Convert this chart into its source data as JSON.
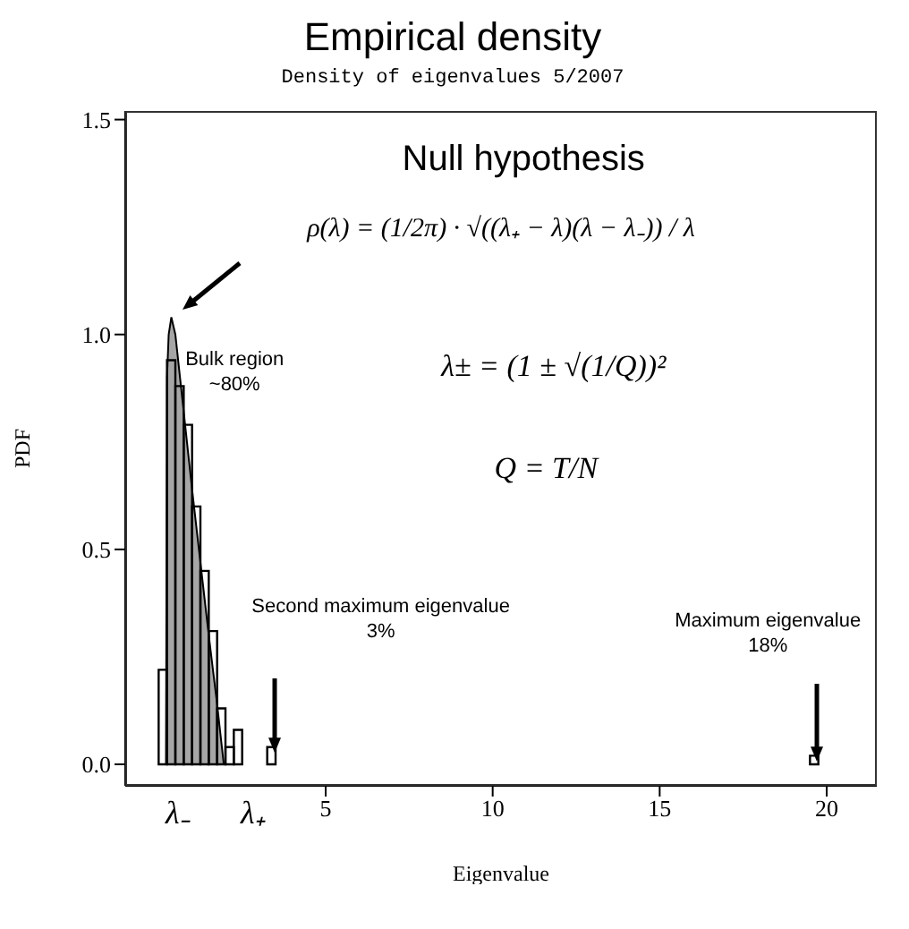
{
  "chart_data": {
    "type": "histogram",
    "title": "Empirical density",
    "subtitle": "Density of eigenvalues 5/2007",
    "xlabel": "Eigenvalue",
    "ylabel": "PDF",
    "bins": [
      0,
      0.25,
      0.5,
      0.75,
      1.0,
      1.25,
      1.5,
      1.75,
      2.0,
      2.25,
      2.5,
      3.25,
      3.5,
      19.5,
      19.75
    ],
    "values": [
      0.22,
      0.94,
      0.88,
      0.79,
      0.6,
      0.45,
      0.31,
      0.13,
      0.04,
      0.08,
      0,
      0.04,
      0,
      0.02
    ],
    "color": "#000000",
    "series": [
      {
        "type": "area",
        "color": "#a6a6a6",
        "x": [
          0.22,
          0.25,
          0.3,
          0.38,
          0.5,
          0.75,
          1.0,
          1.25,
          1.5,
          1.75,
          1.95
        ],
        "values": [
          0,
          0.9,
          1.0,
          1.04,
          1.0,
          0.82,
          0.64,
          0.47,
          0.3,
          0.14,
          0
        ]
      }
    ],
    "xlim": [
      -1,
      21.5
    ],
    "xticks": [
      5,
      10,
      15,
      20
    ],
    "ylim": [
      -0.05,
      1.52
    ],
    "yticks": [
      {
        "value": 0,
        "label": "0.0"
      },
      0.5,
      {
        "value": 1,
        "label": "1.0"
      },
      1.5
    ],
    "grid": false,
    "annotations": [
      "Null hypothesis",
      "ρ(λ) = (1/2π) · √((λ₊ − λ)(λ − λ₋)) / λ",
      "λ± = (1 ± √(1/Q))²",
      "Q = T/N",
      {
        "text": "Bulk region\n~80%",
        "x": 0.4,
        "y": 1.04
      },
      "Second maximum eigenvalue\n3%",
      "Maximum eigenvalue\n18%",
      "λ₋",
      "λ₊"
    ]
  }
}
